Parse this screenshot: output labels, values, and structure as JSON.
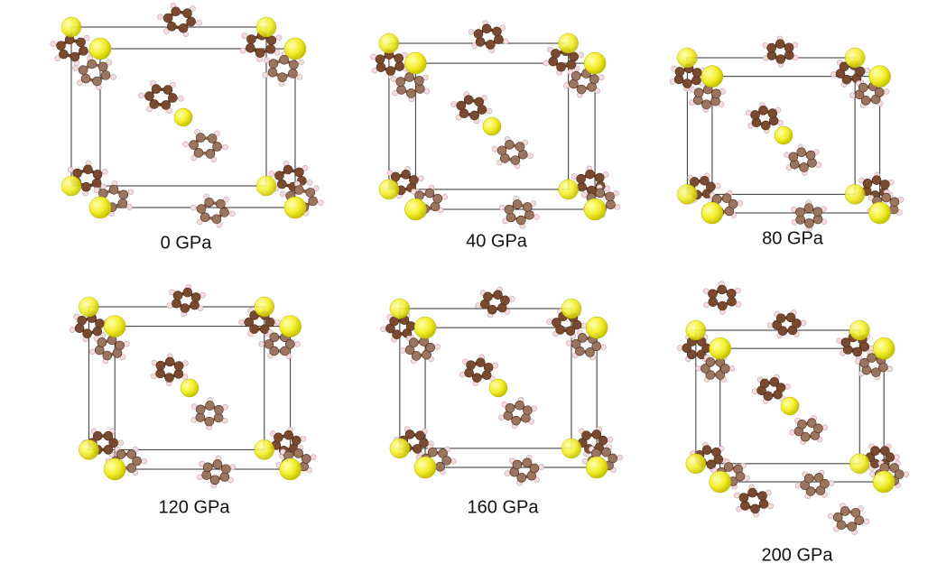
{
  "panels": [
    {
      "label": "0 GPa"
    },
    {
      "label": "40 GPa"
    },
    {
      "label": "80 GPa"
    },
    {
      "label": "120 GPa"
    },
    {
      "label": "160 GPa"
    },
    {
      "label": "200 GPa"
    }
  ]
}
